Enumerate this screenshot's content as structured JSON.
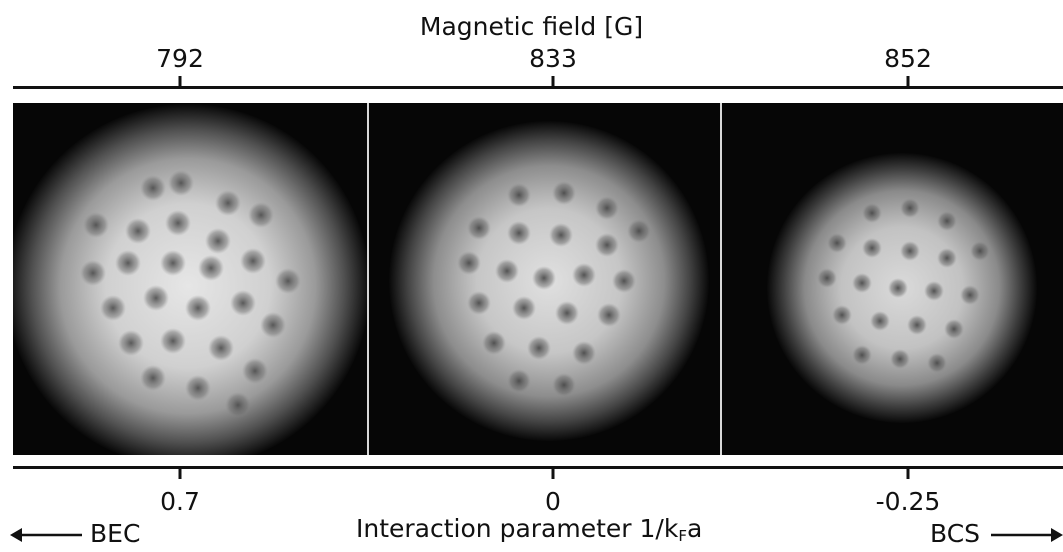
{
  "top_axis": {
    "title": "Magnetic field [G]",
    "ticks": [
      "792",
      "833",
      "852"
    ]
  },
  "bottom_axis": {
    "ticks": [
      "0.7",
      "0",
      "-0.25"
    ],
    "label_prefix": "Interaction parameter 1/k",
    "label_subscript": "F",
    "label_suffix": "a"
  },
  "regimes": {
    "left": "BEC",
    "right": "BCS"
  },
  "panels": [
    {
      "field": "792",
      "interaction": "0.7"
    },
    {
      "field": "833",
      "interaction": "0"
    },
    {
      "field": "852",
      "interaction": "-0.25"
    }
  ]
}
